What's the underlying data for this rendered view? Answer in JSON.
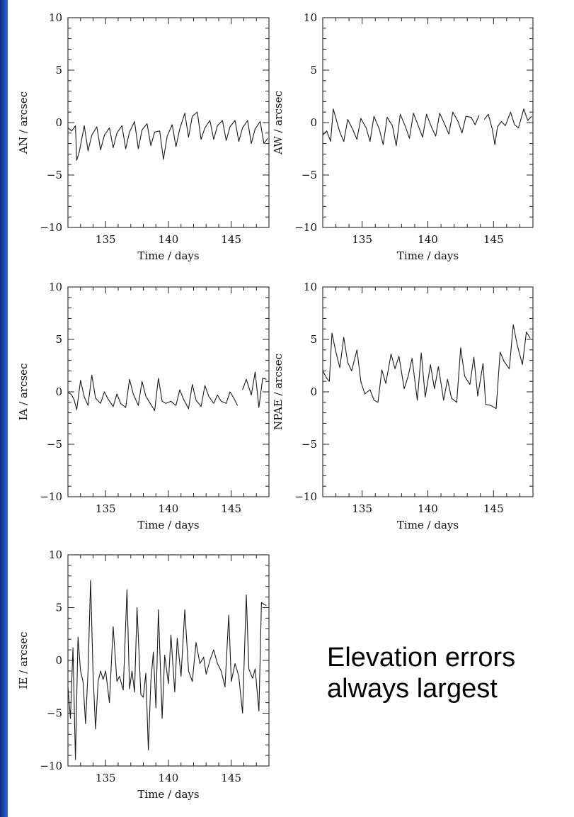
{
  "caption": {
    "line1": "Elevation errors",
    "line2": "always largest"
  },
  "style": {
    "line_color": "#1a1a1a",
    "side_bar_color": "#1f4fc2",
    "background": "#ffffff"
  },
  "chart_data": [
    {
      "type": "line",
      "xlabel": "Time / days",
      "ylabel": "AN / arcsec",
      "xlim": [
        132,
        148
      ],
      "ylim": [
        -10,
        10
      ],
      "xticks": [
        135,
        140,
        145
      ],
      "yticks": [
        -10,
        -5,
        0,
        5,
        10
      ],
      "series": [
        {
          "x": [
            132.0,
            132.3,
            132.6,
            132.7,
            132.9,
            133.3,
            133.6,
            133.9,
            134.3,
            134.6,
            134.9,
            135.3,
            135.6,
            135.9,
            136.3,
            136.6,
            136.9,
            137.3,
            137.6,
            137.9,
            138.3,
            138.6,
            138.9,
            139.3,
            139.6,
            139.9,
            140.3,
            140.6,
            140.9,
            141.3,
            141.6,
            141.9,
            142.3,
            142.6,
            142.9,
            143.3,
            143.6,
            143.9,
            144.3,
            144.6,
            144.9,
            145.3,
            145.6,
            145.9,
            146.3,
            146.6,
            146.9,
            147.3,
            147.6,
            147.9
          ],
          "y": [
            -0.5,
            -0.8,
            -0.3,
            -3.6,
            -2.8,
            -0.3,
            -2.7,
            -1.2,
            -0.4,
            -2.6,
            -1.2,
            -0.5,
            -2.4,
            -1.0,
            -0.3,
            -2.5,
            -0.9,
            0.1,
            -2.5,
            -0.7,
            -0.1,
            -2.2,
            -0.9,
            -0.8,
            -3.5,
            -1.3,
            -0.2,
            -2.3,
            -0.6,
            0.9,
            -1.4,
            0.6,
            1.0,
            -1.6,
            -0.5,
            0.2,
            -1.6,
            -0.3,
            0.2,
            -1.7,
            -0.4,
            0.2,
            -1.8,
            -0.5,
            0.2,
            -2.0,
            -0.6,
            0.1,
            -2.0,
            -1.5
          ]
        }
      ]
    },
    {
      "type": "line",
      "xlabel": "Time / days",
      "ylabel": "AW / arcsec",
      "xlim": [
        132,
        148
      ],
      "ylim": [
        -10,
        10
      ],
      "xticks": [
        135,
        140,
        145
      ],
      "yticks": [
        -10,
        -5,
        0,
        5,
        10
      ],
      "series": [
        {
          "x": [
            132.0,
            132.3,
            132.6,
            132.8,
            133.0,
            133.3,
            133.6,
            133.9,
            134.3,
            134.6,
            134.9,
            135.3,
            135.6,
            135.9,
            136.3,
            136.6,
            136.9,
            137.3,
            137.6,
            137.9,
            138.3,
            138.6,
            138.9,
            139.3,
            139.6,
            139.9,
            140.3,
            140.6,
            140.9,
            141.3,
            141.6,
            141.9,
            142.3,
            142.6,
            142.9,
            143.3,
            143.6,
            143.9
          ],
          "y": [
            -1.2,
            -0.8,
            -1.8,
            1.3,
            0.4,
            -0.9,
            -1.8,
            0.3,
            -0.7,
            -1.6,
            0.4,
            -0.5,
            -1.8,
            0.6,
            -0.6,
            -2.1,
            0.5,
            -0.3,
            -2.2,
            0.8,
            -0.4,
            -1.5,
            0.9,
            -0.4,
            -1.4,
            0.8,
            -0.5,
            -1.3,
            0.9,
            -0.2,
            -1.1,
            1.0,
            0.1,
            -1.0,
            0.6,
            0.5,
            -0.2,
            0.7
          ]
        },
        {
          "x": [
            144.3,
            144.6,
            144.9,
            145.1,
            145.3,
            145.6,
            145.9,
            146.3,
            146.6,
            146.9,
            147.3,
            147.6,
            147.9
          ],
          "y": [
            0.3,
            0.8,
            -0.6,
            -2.1,
            -0.4,
            0.1,
            -0.3,
            1.0,
            -0.2,
            -0.5,
            1.3,
            0.2,
            0.6
          ]
        }
      ]
    },
    {
      "type": "line",
      "xlabel": "Time / days",
      "ylabel": "IA / arcsec",
      "xlim": [
        132,
        148
      ],
      "ylim": [
        -10,
        10
      ],
      "xticks": [
        135,
        140,
        145
      ],
      "yticks": [
        -10,
        -5,
        0,
        5,
        10
      ],
      "series": [
        {
          "x": [
            132.0,
            132.3,
            132.5,
            132.7,
            133.0,
            133.3,
            133.6,
            133.9,
            134.2,
            134.6,
            134.9,
            135.2,
            135.6,
            135.9,
            136.2,
            136.6,
            136.9,
            137.2,
            137.6,
            137.9,
            138.2,
            138.6,
            138.9,
            139.2,
            139.5,
            139.8,
            140.2,
            140.6,
            140.9,
            141.2,
            141.6,
            141.9,
            142.2,
            142.6,
            142.9,
            143.2,
            143.6,
            143.9,
            144.2,
            144.6,
            144.9,
            145.2,
            145.5
          ],
          "y": [
            0.0,
            -0.3,
            -0.8,
            -1.7,
            1.1,
            -0.5,
            -1.3,
            1.6,
            -0.6,
            -1.1,
            0.0,
            -0.7,
            -1.4,
            -0.2,
            -1.1,
            -1.5,
            1.2,
            -0.2,
            -1.3,
            1.0,
            -0.4,
            -1.2,
            -1.8,
            1.3,
            -0.9,
            -1.1,
            -0.9,
            -1.3,
            0.2,
            -0.7,
            -1.6,
            0.7,
            -0.8,
            -1.4,
            0.6,
            -0.4,
            -1.1,
            -0.3,
            -0.9,
            -1.1,
            0.0,
            -0.6,
            -1.3
          ]
        },
        {
          "x": [
            145.9,
            146.2,
            146.6,
            146.9,
            147.2,
            147.5,
            147.8
          ],
          "y": [
            0.2,
            1.2,
            -0.3,
            1.9,
            -1.5,
            1.3,
            1.2
          ]
        }
      ]
    },
    {
      "type": "line",
      "xlabel": "Time / days",
      "ylabel": "NPAE / arcsec",
      "xlim": [
        132,
        148
      ],
      "ylim": [
        -10,
        10
      ],
      "xticks": [
        135,
        140,
        145
      ],
      "yticks": [
        -10,
        -5,
        0,
        5,
        10
      ],
      "series": [
        {
          "x": [
            132.0,
            132.3,
            132.5,
            132.7,
            133.0,
            133.3,
            133.6,
            133.9,
            134.2,
            134.6,
            134.9,
            135.2,
            135.6,
            135.9,
            136.2,
            136.5,
            136.8,
            137.2,
            137.5,
            137.8,
            138.2,
            138.5,
            138.8,
            139.2,
            139.5,
            139.8,
            140.2,
            140.5,
            140.8,
            141.2,
            141.5,
            141.8,
            142.2,
            142.5,
            142.8,
            143.2,
            143.5,
            143.8,
            144.2,
            144.4,
            144.8,
            145.2,
            145.5,
            145.8,
            146.2,
            146.5,
            146.8,
            147.2,
            147.5,
            147.8
          ],
          "y": [
            2.0,
            1.3,
            1.0,
            5.6,
            3.8,
            2.3,
            5.2,
            2.8,
            2.0,
            4.0,
            1.0,
            -0.2,
            0.2,
            -0.8,
            -1.0,
            2.1,
            0.8,
            3.6,
            2.2,
            3.4,
            0.3,
            1.5,
            3.2,
            -0.8,
            3.7,
            -0.5,
            2.6,
            0.3,
            2.4,
            -0.8,
            1.2,
            -0.6,
            -1.0,
            4.2,
            1.5,
            0.7,
            3.3,
            -0.4,
            2.7,
            -1.2,
            -1.3,
            -1.6,
            3.8,
            2.9,
            2.2,
            6.4,
            4.5,
            2.6,
            5.7,
            5.1
          ]
        }
      ]
    },
    {
      "type": "line",
      "xlabel": "Time / days",
      "ylabel": "IE / arcsec",
      "xlim": [
        132,
        148
      ],
      "ylim": [
        -10,
        10
      ],
      "xticks": [
        135,
        140,
        145
      ],
      "yticks": [
        -10,
        -5,
        0,
        5,
        10
      ],
      "series": [
        {
          "x": [
            132.0,
            132.2,
            132.4,
            132.6,
            132.8,
            133.0,
            133.2,
            133.4,
            133.6,
            133.8,
            134.0,
            134.2,
            134.4,
            134.6,
            134.8,
            135.0,
            135.3,
            135.6,
            135.9,
            136.1,
            136.4,
            136.7,
            136.9,
            137.1,
            137.3,
            137.5,
            137.8,
            138.0,
            138.2,
            138.4,
            138.6,
            138.8,
            139.0,
            139.2,
            139.5,
            139.7,
            140.0,
            140.2,
            140.5,
            140.7,
            141.0,
            141.3,
            141.6,
            141.9,
            142.2,
            142.5,
            142.8,
            143.0,
            143.3,
            143.6,
            143.9,
            144.2,
            144.5,
            144.8,
            145.0,
            145.3,
            145.6,
            145.9,
            146.2,
            146.4,
            146.7,
            146.9,
            147.2,
            147.4,
            147.6,
            147.8
          ],
          "y": [
            -2.5,
            -5.5,
            1.2,
            -9.4,
            2.2,
            -1.0,
            -2.0,
            -6.0,
            -1.0,
            7.6,
            -1.3,
            -6.5,
            -2.0,
            -1.0,
            -1.8,
            -1.0,
            -4.0,
            3.2,
            -2.0,
            -1.5,
            -2.8,
            6.7,
            -2.7,
            -1.0,
            -3.0,
            5.0,
            -3.2,
            -3.5,
            -1.2,
            -8.5,
            -2.0,
            0.8,
            -4.5,
            4.8,
            -5.5,
            0.5,
            -2.2,
            2.4,
            -3.0,
            2.1,
            -1.5,
            4.8,
            -1.0,
            -2.0,
            1.7,
            -0.3,
            0.3,
            -1.3,
            0.0,
            1.0,
            -0.3,
            -1.0,
            -2.5,
            4.3,
            -2.0,
            -0.3,
            -1.5,
            -5.0,
            6.2,
            -0.8,
            -1.7,
            -0.8,
            -4.8,
            5.5,
            5.3,
            5.2
          ]
        }
      ]
    }
  ]
}
